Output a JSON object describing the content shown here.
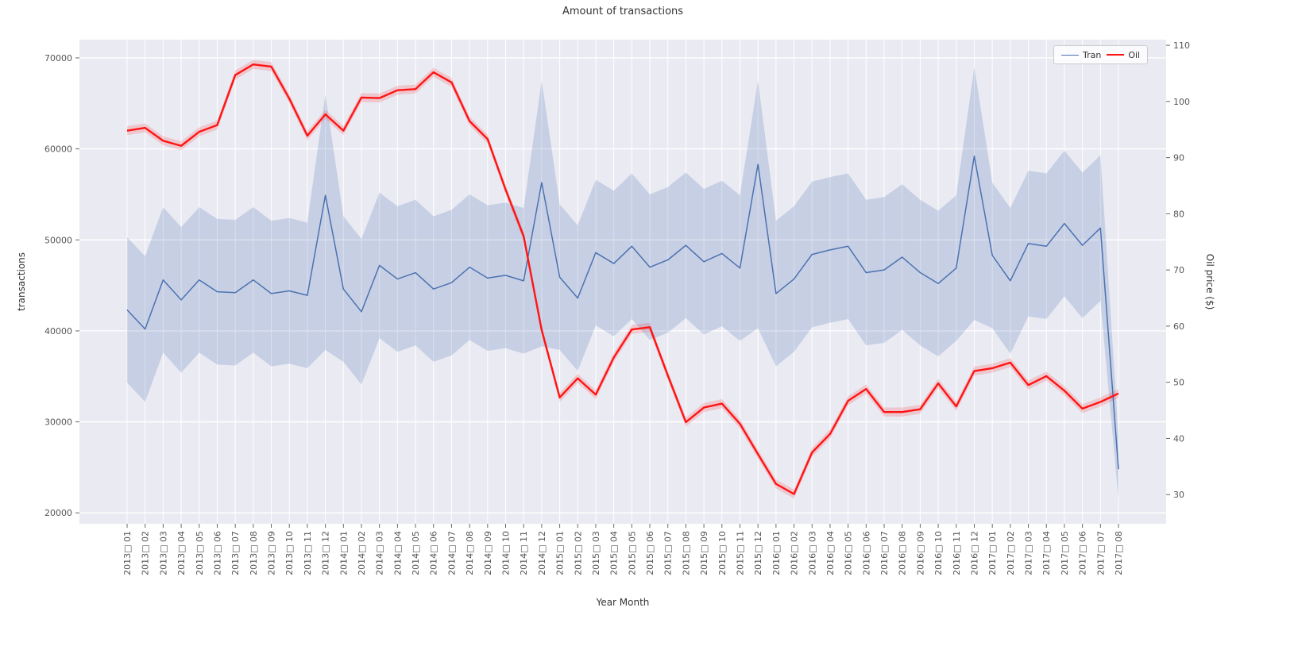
{
  "chart_data": {
    "type": "line",
    "title": "Amount of transactions",
    "xlabel": "Year Month",
    "ylabel_left": "transactions",
    "ylabel_right": "Oil price ($)",
    "legend": [
      "Tran",
      "Oil"
    ],
    "legend_position": "upper right",
    "grid": true,
    "categories": [
      "2013□ 01",
      "2013□ 02",
      "2013□ 03",
      "2013□ 04",
      "2013□ 05",
      "2013□ 06",
      "2013□ 07",
      "2013□ 08",
      "2013□ 09",
      "2013□ 10",
      "2013□ 11",
      "2013□ 12",
      "2014□ 01",
      "2014□ 02",
      "2014□ 03",
      "2014□ 04",
      "2014□ 05",
      "2014□ 06",
      "2014□ 07",
      "2014□ 08",
      "2014□ 09",
      "2014□ 10",
      "2014□ 11",
      "2014□ 12",
      "2015□ 01",
      "2015□ 02",
      "2015□ 03",
      "2015□ 04",
      "2015□ 05",
      "2015□ 06",
      "2015□ 07",
      "2015□ 08",
      "2015□ 09",
      "2015□ 10",
      "2015□ 11",
      "2015□ 12",
      "2016□ 01",
      "2016□ 02",
      "2016□ 03",
      "2016□ 04",
      "2016□ 05",
      "2016□ 06",
      "2016□ 07",
      "2016□ 08",
      "2016□ 09",
      "2016□ 10",
      "2016□ 11",
      "2016□ 12",
      "2017□ 01",
      "2017□ 02",
      "2017□ 03",
      "2017□ 04",
      "2017□ 05",
      "2017□ 06",
      "2017□ 07",
      "2017□ 08"
    ],
    "left_axis": {
      "min": 18800,
      "max": 72000,
      "ticks": [
        20000,
        30000,
        40000,
        50000,
        60000,
        70000
      ]
    },
    "right_axis": {
      "min": 24.8,
      "max": 111,
      "ticks": [
        30,
        40,
        50,
        60,
        70,
        80,
        90,
        100,
        110
      ]
    },
    "series": [
      {
        "name": "Transactions",
        "axis": "left",
        "values": [
          42300,
          40200,
          45600,
          43400,
          45600,
          44300,
          44200,
          45600,
          44100,
          44400,
          43900,
          54900,
          44600,
          42100,
          47200,
          45700,
          46400,
          44600,
          45300,
          47000,
          45800,
          46100,
          45500,
          56300,
          45900,
          43600,
          48600,
          47400,
          49300,
          47000,
          47800,
          49400,
          47600,
          48500,
          46900,
          58300,
          44100,
          45700,
          48400,
          48900,
          49300,
          46400,
          46700,
          48100,
          46400,
          45200,
          46900,
          59200,
          48300,
          45500,
          49600,
          49300,
          51800,
          49400,
          51300,
          24800
        ],
        "band_lower": [
          34300,
          32200,
          37600,
          35400,
          37600,
          36300,
          36200,
          37600,
          36100,
          36400,
          35900,
          37900,
          36600,
          34100,
          39200,
          37700,
          38400,
          36600,
          37300,
          39000,
          37800,
          38100,
          37500,
          38300,
          37900,
          35600,
          40600,
          39400,
          41300,
          39000,
          39800,
          41400,
          39600,
          40500,
          38900,
          40300,
          36100,
          37700,
          40400,
          40900,
          41300,
          38400,
          38700,
          40100,
          38400,
          37200,
          38900,
          41200,
          40300,
          37500,
          41600,
          41300,
          43800,
          41400,
          43300,
          21500
        ],
        "band_upper": [
          50300,
          48200,
          53600,
          51400,
          53600,
          52300,
          52200,
          53600,
          52100,
          52400,
          51900,
          66000,
          52600,
          50100,
          55200,
          53700,
          54400,
          52600,
          53300,
          55000,
          53800,
          54100,
          53500,
          67500,
          53900,
          51600,
          56600,
          55400,
          57300,
          55000,
          55800,
          57400,
          55600,
          56500,
          54900,
          67500,
          52100,
          53700,
          56400,
          56900,
          57300,
          54400,
          54700,
          56100,
          54400,
          53200,
          54900,
          69000,
          56300,
          53500,
          57600,
          57300,
          59800,
          57400,
          59300,
          28500
        ]
      },
      {
        "name": "Oil",
        "axis": "right",
        "band_delta": 0.8,
        "values": [
          94.8,
          95.3,
          93.0,
          92.1,
          94.6,
          95.8,
          104.7,
          106.6,
          106.2,
          100.5,
          93.9,
          97.7,
          94.8,
          100.7,
          100.6,
          102.0,
          102.2,
          105.2,
          103.4,
          96.5,
          93.3,
          84.3,
          76.0,
          59.3,
          47.3,
          50.7,
          47.8,
          54.4,
          59.4,
          59.8,
          51.2,
          42.9,
          45.5,
          46.2,
          42.6,
          37.2,
          31.9,
          30.1,
          37.5,
          40.8,
          46.7,
          48.8,
          44.7,
          44.7,
          45.2,
          49.8,
          45.7,
          52.0,
          52.5,
          53.5,
          49.5,
          51.1,
          48.5,
          45.3,
          46.5,
          48.0
        ]
      }
    ],
    "colors": {
      "plot_bg": "#eaeaf2",
      "grid": "#ffffff",
      "transactions_line": "#4c72b0",
      "transactions_band": "rgba(76,114,176,0.22)",
      "oil_line": "#ff1414",
      "oil_band": "rgba(255,20,20,0.16)",
      "tick_text": "#555555"
    }
  }
}
